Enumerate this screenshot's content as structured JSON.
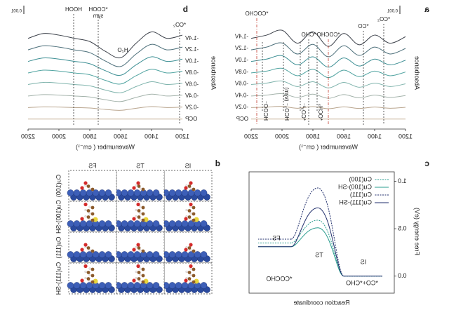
{
  "chart_data": [
    {
      "panel_label": "a",
      "type": "line",
      "x_label": "Wavenumber ( cm⁻¹)",
      "y_label": "Absorbance",
      "scale_bar": "0.001",
      "x": [
        2200,
        2100,
        2000,
        1900,
        1800,
        1700,
        1600,
        1500,
        1400,
        1300,
        1200
      ],
      "xlim": [
        1200,
        2200
      ],
      "xticks": [
        1200,
        1400,
        1600,
        1800,
        2000,
        2200
      ],
      "ylim": [
        -0.5,
        8.5
      ],
      "series": [
        {
          "name": "OCP",
          "color": "#c8b49a",
          "values": [
            0,
            0,
            0,
            0,
            0,
            0,
            0,
            0,
            0,
            0,
            0
          ]
        },
        {
          "name": "-0.2V",
          "color": "#b9a58e",
          "values": [
            1,
            1.04,
            1.1,
            0.94,
            1.08,
            0.9,
            1.06,
            0.92,
            1.04,
            0.94,
            1.02
          ]
        },
        {
          "name": "-0.4V",
          "color": "#a3b2aa",
          "values": [
            2,
            2.08,
            2.2,
            1.88,
            2.16,
            1.8,
            2.12,
            1.84,
            2.08,
            1.88,
            2.04
          ]
        },
        {
          "name": "-0.6V",
          "color": "#80b4ad",
          "values": [
            3,
            3.12,
            3.3,
            2.82,
            3.24,
            2.7,
            3.18,
            2.76,
            3.12,
            2.82,
            3.06
          ]
        },
        {
          "name": "-0.8V",
          "color": "#4fa3a0",
          "values": [
            4,
            4.16,
            4.4,
            3.76,
            4.32,
            3.6,
            4.24,
            3.68,
            4.16,
            3.76,
            4.08
          ]
        },
        {
          "name": "-1.0V",
          "color": "#3d8f94",
          "values": [
            5,
            5.2,
            5.5,
            4.7,
            5.4,
            4.5,
            5.3,
            4.6,
            5.2,
            4.7,
            5.1
          ]
        },
        {
          "name": "-1.2V",
          "color": "#4c6f7a",
          "values": [
            6,
            6.24,
            6.6,
            5.64,
            6.48,
            5.4,
            6.36,
            5.52,
            6.24,
            5.64,
            6.12
          ]
        },
        {
          "name": "-1.4V",
          "color": "#3a3f48",
          "values": [
            7,
            7.28,
            7.7,
            6.58,
            7.56,
            6.3,
            7.42,
            6.44,
            7.28,
            6.58,
            7.14
          ]
        }
      ],
      "annotations": [
        {
          "text": "*COCHO",
          "color": "#c0392b"
        },
        {
          "text": "*COCHO",
          "color": "#c0392b"
        },
        {
          "text": "*CHO",
          "color": "#222222"
        },
        {
          "text": "*CO",
          "color": "#222222"
        },
        {
          "text": "*CO₂",
          "color": "#222222"
        },
        {
          "text": "HCOO⁻",
          "color": "#222222"
        },
        {
          "text": "HCO₃⁻ (sym)",
          "color": "#222222"
        },
        {
          "text": "*CO₃²⁻",
          "color": "#222222"
        },
        {
          "text": "*OCH₃",
          "color": "#222222"
        }
      ]
    },
    {
      "panel_label": "b",
      "type": "line",
      "x_label": "Wavenumber ( cm⁻¹)",
      "y_label": "Absorbance",
      "scale_bar": "0.001",
      "x": [
        2200,
        2100,
        2000,
        1900,
        1800,
        1700,
        1600,
        1500,
        1400,
        1300,
        1200
      ],
      "xlim": [
        1200,
        2200
      ],
      "xticks": [
        1200,
        1400,
        1600,
        1800,
        2000,
        2200
      ],
      "ylim": [
        -0.5,
        8.5
      ],
      "series": [
        {
          "name": "OCP",
          "color": "#c8b49a",
          "values": [
            0,
            0,
            0,
            0,
            0,
            0,
            0,
            0,
            0,
            0,
            0
          ]
        },
        {
          "name": "-0.2V",
          "color": "#b9a58e",
          "values": [
            1,
            1.06,
            1.04,
            1,
            0.96,
            0.84,
            0.76,
            0.94,
            1.08,
            1,
            1.04
          ]
        },
        {
          "name": "-0.4V",
          "color": "#a3b2aa",
          "values": [
            2,
            2.12,
            2.08,
            2,
            1.92,
            1.68,
            1.52,
            1.88,
            2.16,
            2,
            2.08
          ]
        },
        {
          "name": "-0.6V",
          "color": "#80b4ad",
          "values": [
            3,
            3.18,
            3.12,
            3,
            2.88,
            2.52,
            2.28,
            2.82,
            3.24,
            3,
            3.12
          ]
        },
        {
          "name": "-0.8V",
          "color": "#4fa3a0",
          "values": [
            4,
            4.24,
            4.16,
            4,
            3.84,
            3.36,
            3.04,
            3.76,
            4.32,
            4,
            4.16
          ]
        },
        {
          "name": "-1.0V",
          "color": "#3d8f94",
          "values": [
            5,
            5.3,
            5.2,
            5,
            4.8,
            4.2,
            3.8,
            4.7,
            5.4,
            5,
            5.2
          ]
        },
        {
          "name": "-1.2V",
          "color": "#4c6f7a",
          "values": [
            6,
            6.36,
            6.24,
            6,
            5.76,
            5.04,
            4.56,
            5.64,
            6.48,
            6,
            6.24
          ]
        },
        {
          "name": "-1.4V",
          "color": "#3a3f48",
          "values": [
            7,
            7.42,
            7.28,
            7,
            6.72,
            5.88,
            5.32,
            6.58,
            7.56,
            7,
            7.28
          ]
        }
      ],
      "annotations": [
        {
          "text": "HOOH",
          "color": "#222222"
        },
        {
          "text": "*COOH",
          "color": "#222222"
        },
        {
          "text": "sym",
          "color": "#222222"
        },
        {
          "text": "H₂O",
          "color": "#222222"
        },
        {
          "text": "*CO₂",
          "color": "#222222"
        }
      ]
    },
    {
      "panel_label": "c",
      "type": "energy",
      "x_label": "Reaction coordinate",
      "y_label": "Free energy (eV)",
      "categories": [
        "IS",
        "TS",
        "FS"
      ],
      "state_labels": [
        "*CO+*CHO",
        "*COCHO"
      ],
      "ylim": [
        -0.18,
        1.1
      ],
      "yticks": [
        {
          "value": 0,
          "label": "0.0"
        },
        0.5,
        {
          "value": 1,
          "label": "1.0"
        }
      ],
      "legend": "upper left",
      "series": [
        {
          "name": "Cu(100)",
          "color": "#2a9d8f",
          "dash": true,
          "values": [
            0,
            0.59,
            0.35
          ]
        },
        {
          "name": "Cu(100)-SH",
          "color": "#2a9d8f",
          "dash": false,
          "values": [
            0,
            0.51,
            0.31
          ]
        },
        {
          "name": "Cu(111)",
          "color": "#1f2d6b",
          "dash": true,
          "values": [
            0,
            0.93,
            0.39
          ]
        },
        {
          "name": "Cu(111)-SH",
          "color": "#1f2d6b",
          "dash": false,
          "values": [
            0,
            0.72,
            0.31
          ]
        }
      ]
    }
  ],
  "panel_d": {
    "panel_label": "d",
    "columns": [
      "IS",
      "TS",
      "FS"
    ],
    "rows": [
      "Cu(100)",
      "Cu(100)-SH",
      "Cu(111)",
      "Cu(111)-SH"
    ]
  }
}
